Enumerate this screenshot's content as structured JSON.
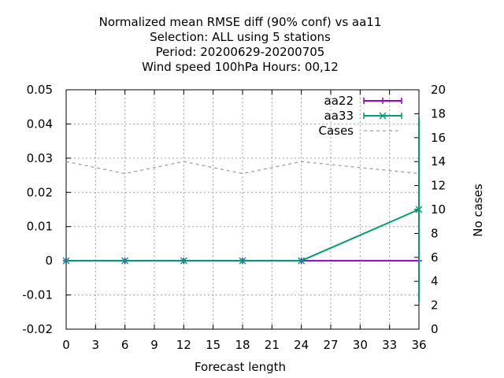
{
  "chart_data": {
    "type": "line",
    "title_lines": [
      "Normalized mean RMSE diff (90% conf) vs aa11",
      "Selection: ALL using     5 stations",
      "Period: 20200629-20200705",
      "Wind speed 100hPa   Hours:  00,12"
    ],
    "xlabel": "Forecast length",
    "ylabel": "",
    "y2label": "No cases",
    "xlim": [
      0,
      36
    ],
    "ylim": [
      -0.02,
      0.05
    ],
    "y2lim": [
      0,
      20
    ],
    "x_ticks": [
      0,
      3,
      6,
      9,
      12,
      15,
      18,
      21,
      24,
      27,
      30,
      33,
      36
    ],
    "y_ticks": [
      "-0.02",
      "-0.01",
      "0",
      "0.01",
      "0.02",
      "0.03",
      "0.04",
      "0.05"
    ],
    "y2_ticks": [
      "0",
      "2",
      "4",
      "6",
      "8",
      "10",
      "12",
      "14",
      "16",
      "18",
      "20"
    ],
    "grid": true,
    "legend_position": "top-right",
    "series": [
      {
        "name": "aa22",
        "axis": "y1",
        "color": "#9400d3",
        "marker": "plus",
        "x": [
          0,
          6,
          12,
          18,
          24,
          36
        ],
        "y": [
          0,
          0,
          0,
          0,
          0,
          0
        ],
        "error_bar": {
          "x": 36,
          "low": -0.012,
          "high": 0.0
        }
      },
      {
        "name": "aa33",
        "axis": "y1",
        "color": "#009e73",
        "marker": "x",
        "x": [
          0,
          6,
          12,
          18,
          24,
          36
        ],
        "y": [
          0,
          0,
          0,
          0,
          0,
          0.015
        ],
        "error_bar": {
          "x": 36,
          "low": -0.012,
          "high": 0.042
        }
      },
      {
        "name": "Cases",
        "axis": "y2",
        "color": "#a0a0a0",
        "marker": "none",
        "dashed": true,
        "x": [
          0,
          6,
          12,
          18,
          24,
          36
        ],
        "y": [
          14,
          13,
          14,
          13,
          14,
          13
        ]
      }
    ]
  }
}
